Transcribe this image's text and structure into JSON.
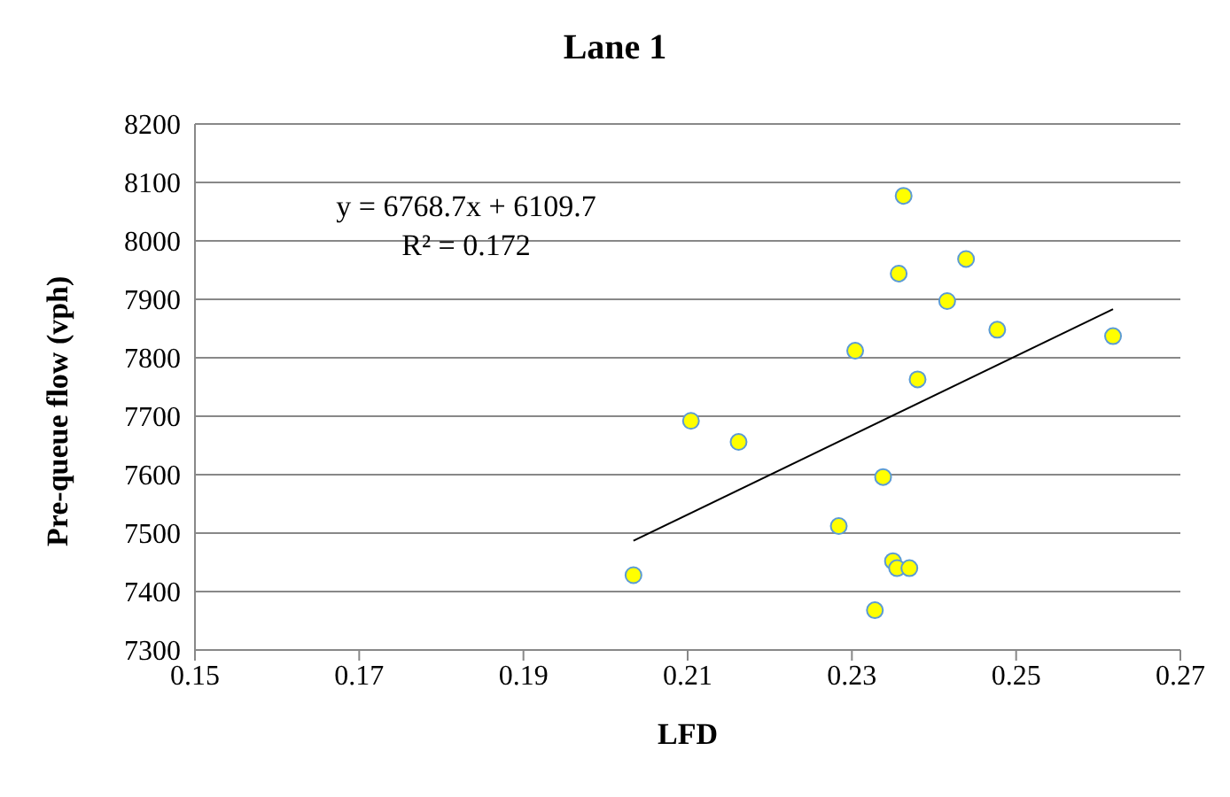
{
  "chart_data": {
    "type": "scatter",
    "title": "Lane 1",
    "xlabel": "LFD",
    "ylabel": "Pre-queue flow (vph)",
    "xlim": [
      0.15,
      0.27
    ],
    "xticks": [
      0.15,
      0.17,
      0.19,
      0.21,
      0.23,
      0.25,
      0.27
    ],
    "ylim": [
      7300,
      8200
    ],
    "yticks": [
      7300,
      7400,
      7500,
      7600,
      7700,
      7800,
      7900,
      8000,
      8100,
      8200
    ],
    "grid": "y",
    "marker": "circle",
    "annotations": [
      "y = 6768.7x + 6109.7",
      "R² = 0.172"
    ],
    "series": [
      {
        "color": "#ffff00",
        "x": [
          0.2034,
          0.2104,
          0.2162,
          0.2284,
          0.2304,
          0.2328,
          0.2338,
          0.235,
          0.2355,
          0.2357,
          0.2363,
          0.237,
          0.238,
          0.2416,
          0.2439,
          0.2477,
          0.2618
        ],
        "values": [
          7428,
          7692,
          7656,
          7512,
          7812,
          7368,
          7596,
          7452,
          7440,
          7944,
          8077,
          7440,
          7763,
          7897,
          7969,
          7848,
          7837
        ]
      },
      {
        "type": "line",
        "color": "#000000",
        "marker": "none",
        "x": [
          0.2034,
          0.2618
        ],
        "values": [
          7487,
          7883
        ]
      }
    ]
  }
}
